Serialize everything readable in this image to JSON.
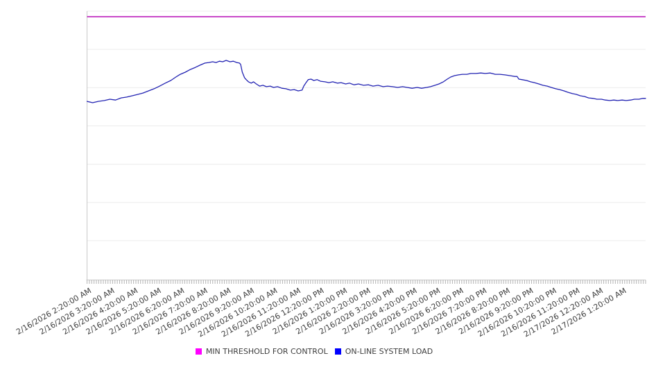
{
  "chart": {
    "background": "#ffffff",
    "gridline_color": "#ececec",
    "axis_color": "#c8c8c8",
    "tick_color": "#b2b2b2",
    "label_color": "#3d3d3d"
  },
  "chart_data": {
    "type": "line",
    "title": "",
    "xlabel": "",
    "ylabel": "",
    "legend_position": "bottom-center",
    "grid": "horizontal-only",
    "x_axis": {
      "tick_labels": [
        "2/16/2026 2:20:00 AM",
        "2/16/2026 3:20:00 AM",
        "2/16/2026 4:20:00 AM",
        "2/16/2026 5:20:00 AM",
        "2/16/2026 6:20:00 AM",
        "2/16/2026 7:20:00 AM",
        "2/16/2026 8:20:00 AM",
        "2/16/2026 9:20:00 AM",
        "2/16/2026 10:20:00 AM",
        "2/16/2026 11:20:00 AM",
        "2/16/2026 12:20:00 PM",
        "2/16/2026 1:20:00 PM",
        "2/16/2026 2:20:00 PM",
        "2/16/2026 3:20:00 PM",
        "2/16/2026 4:20:00 PM",
        "2/16/2026 5:20:00 PM",
        "2/16/2026 6:20:00 PM",
        "2/16/2026 7:20:00 PM",
        "2/16/2026 8:20:00 PM",
        "2/16/2026 9:20:00 PM",
        "2/16/2026 10:20:00 PM",
        "2/16/2026 11:20:00 PM",
        "2/17/2026 12:20:00 AM",
        "2/17/2026 1:20:00 AM"
      ],
      "label_rotation_deg": -30,
      "minor_ticks_per_hour": 10
    },
    "y_axis": {
      "numeric_labels_visible": false,
      "scale_note": "no y tick labels shown; values below are relative units, 0 = bottom axis, 100 = top gridline",
      "range": [
        0,
        100
      ],
      "gridline_count": 7
    },
    "x_note": "x values are fraction of plot width; time span approx 2:00 AM 2/16/2026 to 2:15 AM 2/17/2026",
    "series": [
      {
        "name": "MIN THRESHOLD FOR CONTROL",
        "type": "constant-line",
        "value": 97.9,
        "line_color": "#c02fc0",
        "swatch_color": "#ff00ff"
      },
      {
        "name": "ON-LINE SYSTEM LOAD",
        "type": "line",
        "line_color": "#2122b2",
        "swatch_color": "#0000ff",
        "points": [
          [
            0.0,
            66.3
          ],
          [
            0.01,
            65.8
          ],
          [
            0.02,
            66.3
          ],
          [
            0.031,
            66.6
          ],
          [
            0.041,
            67.1
          ],
          [
            0.051,
            66.8
          ],
          [
            0.061,
            67.6
          ],
          [
            0.071,
            67.9
          ],
          [
            0.081,
            68.4
          ],
          [
            0.091,
            68.9
          ],
          [
            0.1,
            69.4
          ],
          [
            0.11,
            70.2
          ],
          [
            0.12,
            71.0
          ],
          [
            0.13,
            72.0
          ],
          [
            0.14,
            73.1
          ],
          [
            0.15,
            74.1
          ],
          [
            0.159,
            75.4
          ],
          [
            0.167,
            76.4
          ],
          [
            0.176,
            77.2
          ],
          [
            0.185,
            78.2
          ],
          [
            0.194,
            79.0
          ],
          [
            0.202,
            79.8
          ],
          [
            0.211,
            80.6
          ],
          [
            0.218,
            80.8
          ],
          [
            0.225,
            81.1
          ],
          [
            0.231,
            80.8
          ],
          [
            0.237,
            81.3
          ],
          [
            0.243,
            81.1
          ],
          [
            0.249,
            81.6
          ],
          [
            0.256,
            81.1
          ],
          [
            0.262,
            81.3
          ],
          [
            0.268,
            80.8
          ],
          [
            0.273,
            80.6
          ],
          [
            0.275,
            80.1
          ],
          [
            0.278,
            77.2
          ],
          [
            0.282,
            75.1
          ],
          [
            0.285,
            74.4
          ],
          [
            0.289,
            73.6
          ],
          [
            0.294,
            73.1
          ],
          [
            0.298,
            73.6
          ],
          [
            0.303,
            72.8
          ],
          [
            0.309,
            72.0
          ],
          [
            0.315,
            72.3
          ],
          [
            0.321,
            71.8
          ],
          [
            0.328,
            72.0
          ],
          [
            0.334,
            71.5
          ],
          [
            0.341,
            71.8
          ],
          [
            0.349,
            71.2
          ],
          [
            0.356,
            71.0
          ],
          [
            0.364,
            70.5
          ],
          [
            0.371,
            70.7
          ],
          [
            0.378,
            70.2
          ],
          [
            0.385,
            70.5
          ],
          [
            0.388,
            72.0
          ],
          [
            0.392,
            73.3
          ],
          [
            0.396,
            74.4
          ],
          [
            0.401,
            74.6
          ],
          [
            0.406,
            74.1
          ],
          [
            0.412,
            74.4
          ],
          [
            0.418,
            73.8
          ],
          [
            0.426,
            73.6
          ],
          [
            0.433,
            73.3
          ],
          [
            0.44,
            73.6
          ],
          [
            0.448,
            73.1
          ],
          [
            0.455,
            73.3
          ],
          [
            0.463,
            72.8
          ],
          [
            0.47,
            73.1
          ],
          [
            0.478,
            72.5
          ],
          [
            0.486,
            72.8
          ],
          [
            0.495,
            72.3
          ],
          [
            0.504,
            72.5
          ],
          [
            0.512,
            72.0
          ],
          [
            0.521,
            72.3
          ],
          [
            0.53,
            71.8
          ],
          [
            0.538,
            72.0
          ],
          [
            0.547,
            71.8
          ],
          [
            0.556,
            71.5
          ],
          [
            0.565,
            71.8
          ],
          [
            0.573,
            71.5
          ],
          [
            0.582,
            71.2
          ],
          [
            0.591,
            71.5
          ],
          [
            0.599,
            71.2
          ],
          [
            0.608,
            71.5
          ],
          [
            0.615,
            71.8
          ],
          [
            0.623,
            72.3
          ],
          [
            0.63,
            72.8
          ],
          [
            0.638,
            73.6
          ],
          [
            0.645,
            74.6
          ],
          [
            0.651,
            75.4
          ],
          [
            0.658,
            75.9
          ],
          [
            0.665,
            76.2
          ],
          [
            0.672,
            76.4
          ],
          [
            0.68,
            76.4
          ],
          [
            0.687,
            76.7
          ],
          [
            0.696,
            76.7
          ],
          [
            0.705,
            76.9
          ],
          [
            0.713,
            76.7
          ],
          [
            0.722,
            76.9
          ],
          [
            0.731,
            76.4
          ],
          [
            0.739,
            76.4
          ],
          [
            0.748,
            76.2
          ],
          [
            0.757,
            75.9
          ],
          [
            0.766,
            75.6
          ],
          [
            0.77,
            75.6
          ],
          [
            0.773,
            74.6
          ],
          [
            0.779,
            74.4
          ],
          [
            0.787,
            74.1
          ],
          [
            0.794,
            73.6
          ],
          [
            0.801,
            73.3
          ],
          [
            0.809,
            72.8
          ],
          [
            0.816,
            72.3
          ],
          [
            0.824,
            72.0
          ],
          [
            0.831,
            71.5
          ],
          [
            0.839,
            71.0
          ],
          [
            0.846,
            70.7
          ],
          [
            0.854,
            70.2
          ],
          [
            0.861,
            69.7
          ],
          [
            0.869,
            69.2
          ],
          [
            0.876,
            68.9
          ],
          [
            0.883,
            68.4
          ],
          [
            0.891,
            68.1
          ],
          [
            0.898,
            67.6
          ],
          [
            0.906,
            67.4
          ],
          [
            0.913,
            67.1
          ],
          [
            0.921,
            67.1
          ],
          [
            0.928,
            66.8
          ],
          [
            0.936,
            66.6
          ],
          [
            0.943,
            66.8
          ],
          [
            0.95,
            66.6
          ],
          [
            0.958,
            66.8
          ],
          [
            0.965,
            66.6
          ],
          [
            0.973,
            66.8
          ],
          [
            0.98,
            67.1
          ],
          [
            0.988,
            67.1
          ],
          [
            0.995,
            67.4
          ],
          [
            1.0,
            67.4
          ]
        ]
      }
    ]
  }
}
